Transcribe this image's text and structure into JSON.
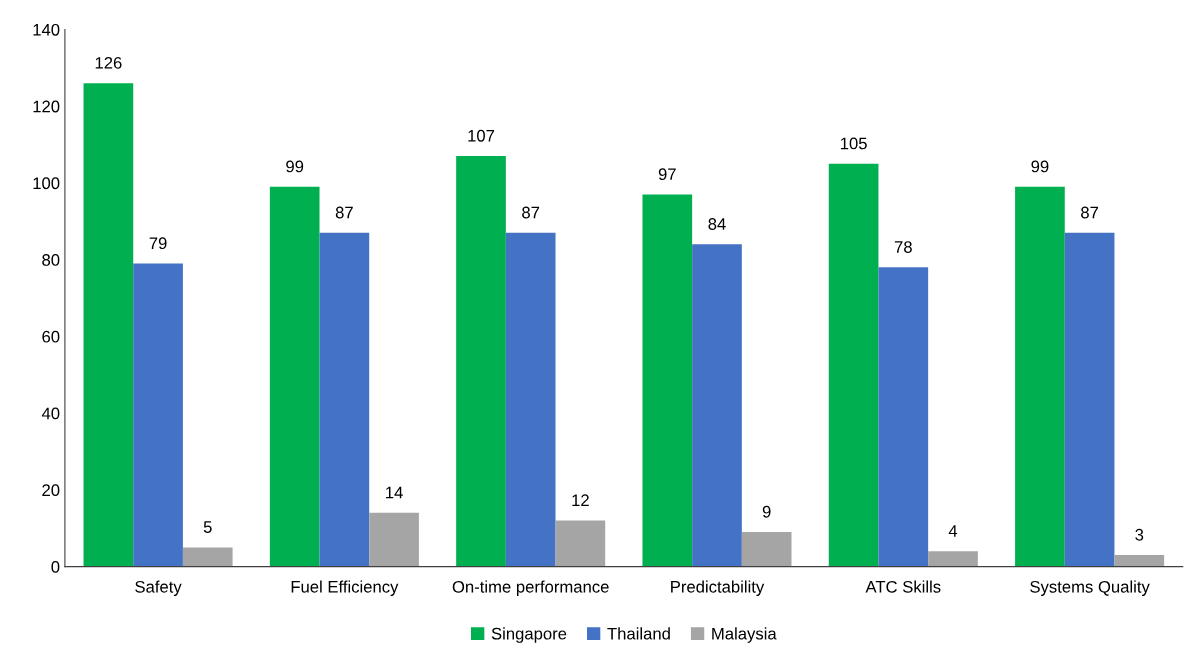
{
  "chart_data": {
    "type": "bar",
    "categories": [
      "Safety",
      "Fuel Efficiency",
      "On-time performance",
      "Predictability",
      "ATC Skills",
      "Systems Quality"
    ],
    "series": [
      {
        "name": "Singapore",
        "color": "#00b050",
        "values": [
          126,
          99,
          107,
          97,
          105,
          99
        ]
      },
      {
        "name": "Thailand",
        "color": "#4472c4",
        "values": [
          79,
          87,
          87,
          84,
          78,
          87
        ]
      },
      {
        "name": "Malaysia",
        "color": "#a5a5a5",
        "values": [
          5,
          14,
          12,
          9,
          4,
          3
        ]
      }
    ],
    "ylim": [
      0,
      140
    ],
    "yticks": [
      0,
      20,
      40,
      60,
      80,
      100,
      120,
      140
    ],
    "grid": false,
    "legend": "bottom",
    "data_labels": true
  }
}
